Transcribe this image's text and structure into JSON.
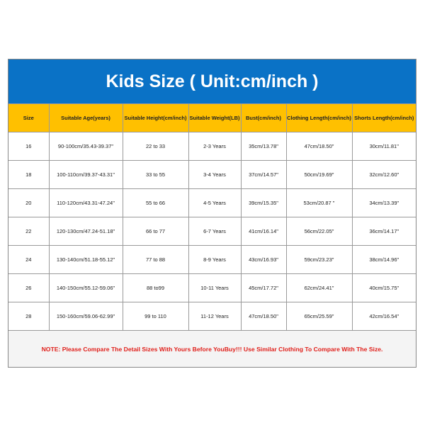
{
  "title": "Kids Size ( Unit:cm/inch )",
  "colors": {
    "title_bg": "#0a72c6",
    "header_bg": "#ffc000",
    "note_text": "#e0201b"
  },
  "headers": [
    "Size",
    "Suitable Age(years)",
    "Suitable Height(cm/inch)",
    "Suitable Weight(LB)",
    "Bust(cm/inch)",
    "Clothing Length(cm/inch)",
    "Shorts Length(cm/inch)"
  ],
  "rows": [
    [
      "16",
      "90-100cm/35.43-39.37\"",
      "22 to 33",
      "2-3 Years",
      "35cm/13.78\"",
      "47cm/18.50\"",
      "30cm/11.81\""
    ],
    [
      "18",
      "100-110cm/39.37-43.31\"",
      "33 to 55",
      "3-4 Years",
      "37cm/14.57\"",
      "50cm/19.69\"",
      "32cm/12.60\""
    ],
    [
      "20",
      "110-120cm/43.31-47.24\"",
      "55 to 66",
      "4-5 Years",
      "39cm/15.35\"",
      "53cm/20.87  \"",
      "34cm/13.39\""
    ],
    [
      "22",
      "120-130cm/47.24-51.18\"",
      "66 to 77",
      "6-7 Years",
      "41cm/16.14\"",
      "56cm/22.05\"",
      "36cm/14.17\""
    ],
    [
      "24",
      "130-140cm/51.18-55.12\"",
      "77 to 88",
      "8-9 Years",
      "43cm/16.93\"",
      "59cm/23.23\"",
      "38cm/14.96\""
    ],
    [
      "26",
      "140-150cm/55.12-59.06\"",
      "88 to99",
      "10-11 Years",
      "45cm/17.72\"",
      "62cm/24.41\"",
      "40cm/15.75\""
    ],
    [
      "28",
      "150-160cm/59.06-62.99\"",
      "99 to 110",
      "11-12 Years",
      "47cm/18.50\"",
      "65cm/25.59\"",
      "42cm/16.54\""
    ]
  ],
  "note": "NOTE: Please Compare The Detail Sizes With Yours Before YouBuy!!! Use Similar Clothing To Compare With The Size."
}
